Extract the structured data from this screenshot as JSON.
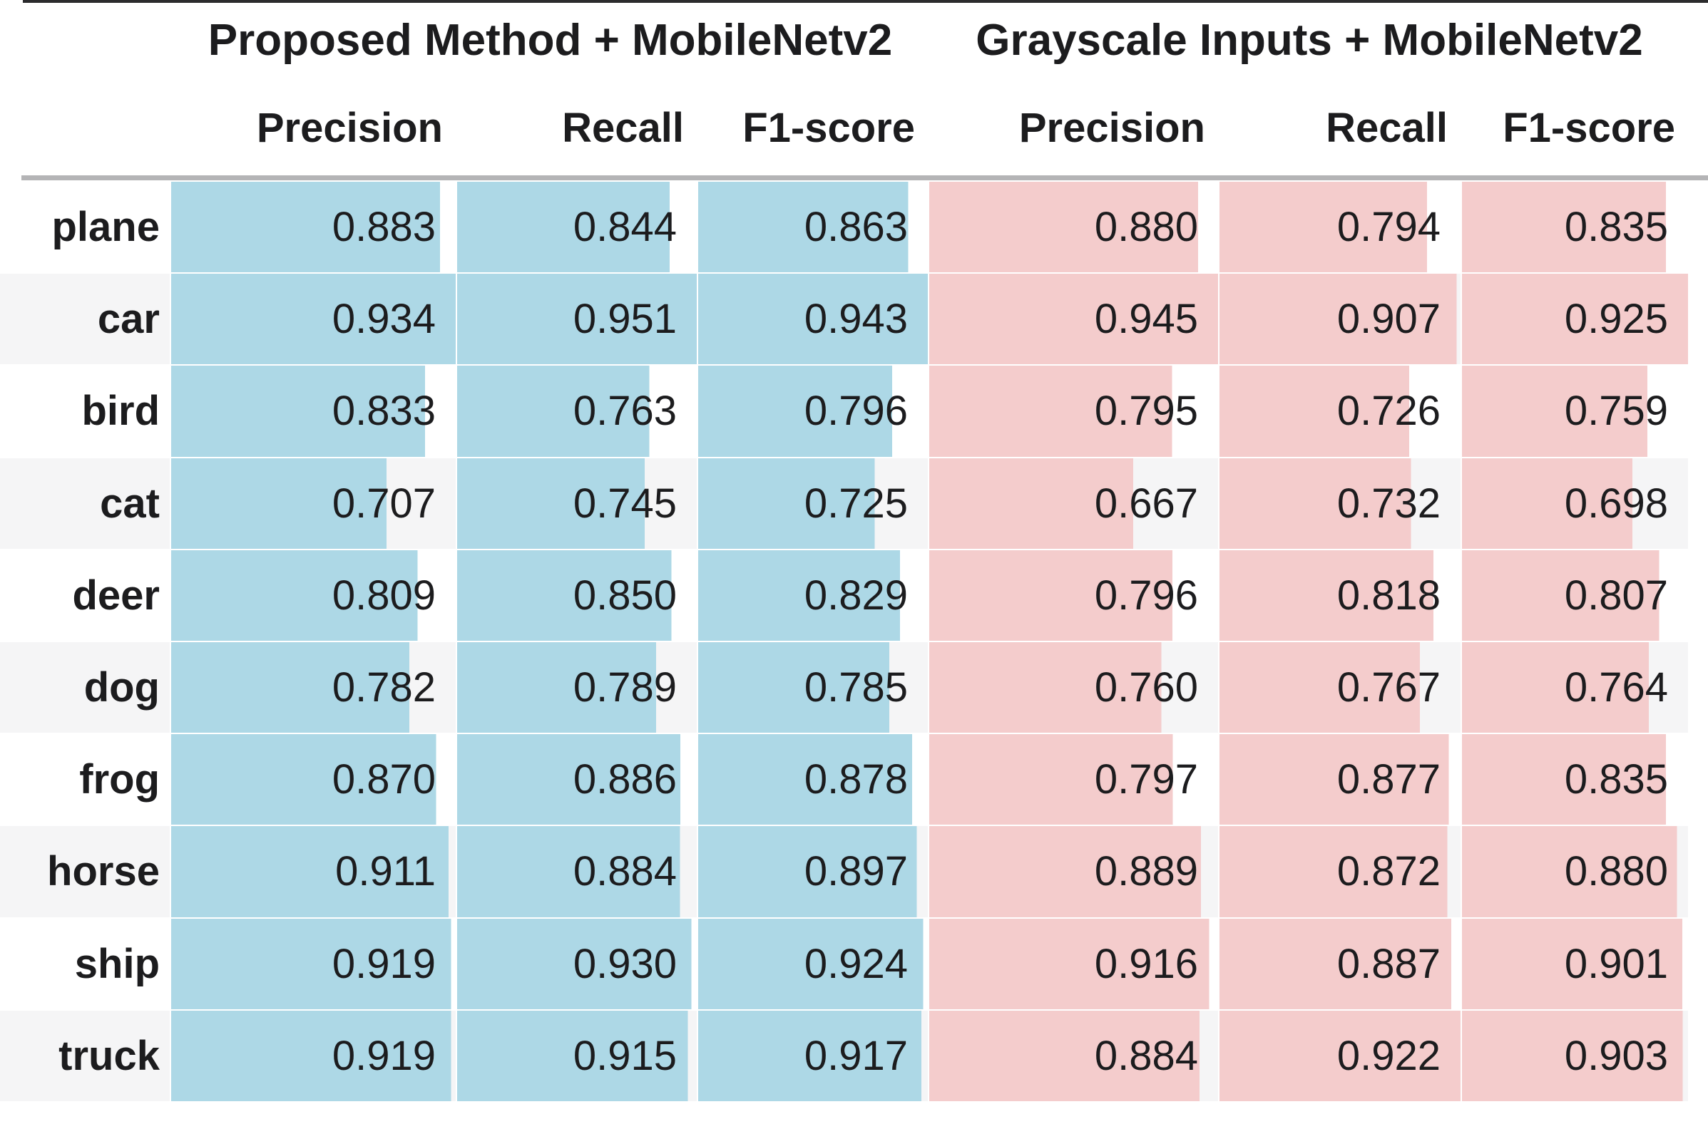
{
  "colors": {
    "bar_blue": "#ADD8E6",
    "bar_pink": "#F4CCCC",
    "row_bg": "#FFFFFF",
    "row_alt_bg": "#F5F5F6",
    "separator": "#B4B4B6",
    "top_line": "#2B2B2D",
    "text": "#1C1C1E"
  },
  "chart_data": {
    "type": "table",
    "column_groups": [
      {
        "label": "Proposed Method + MobileNetv2",
        "metrics": [
          "Precision",
          "Recall",
          "F1-score"
        ]
      },
      {
        "label": "Grayscale Inputs + MobileNetv2",
        "metrics": [
          "Precision",
          "Recall",
          "F1-score"
        ]
      }
    ],
    "row_labels": [
      "plane",
      "car",
      "bird",
      "cat",
      "deer",
      "dog",
      "frog",
      "horse",
      "ship",
      "truck"
    ],
    "values": [
      [
        "0.883",
        "0.844",
        "0.863",
        "0.880",
        "0.794",
        "0.835"
      ],
      [
        "0.934",
        "0.951",
        "0.943",
        "0.945",
        "0.907",
        "0.925"
      ],
      [
        "0.833",
        "0.763",
        "0.796",
        "0.795",
        "0.726",
        "0.759"
      ],
      [
        "0.707",
        "0.745",
        "0.725",
        "0.667",
        "0.732",
        "0.698"
      ],
      [
        "0.809",
        "0.850",
        "0.829",
        "0.796",
        "0.818",
        "0.807"
      ],
      [
        "0.782",
        "0.789",
        "0.785",
        "0.760",
        "0.767",
        "0.764"
      ],
      [
        "0.870",
        "0.886",
        "0.878",
        "0.797",
        "0.877",
        "0.835"
      ],
      [
        "0.911",
        "0.884",
        "0.897",
        "0.889",
        "0.872",
        "0.880"
      ],
      [
        "0.919",
        "0.930",
        "0.924",
        "0.916",
        "0.887",
        "0.901"
      ],
      [
        "0.919",
        "0.915",
        "0.917",
        "0.884",
        "0.922",
        "0.903"
      ]
    ],
    "layout_hints": {
      "bar_rule": "bar width percent = value / column max (vmin = 0), left-anchored",
      "alternating_rows": "even rows white, odd rows light gray",
      "value_alignment": "right"
    }
  }
}
